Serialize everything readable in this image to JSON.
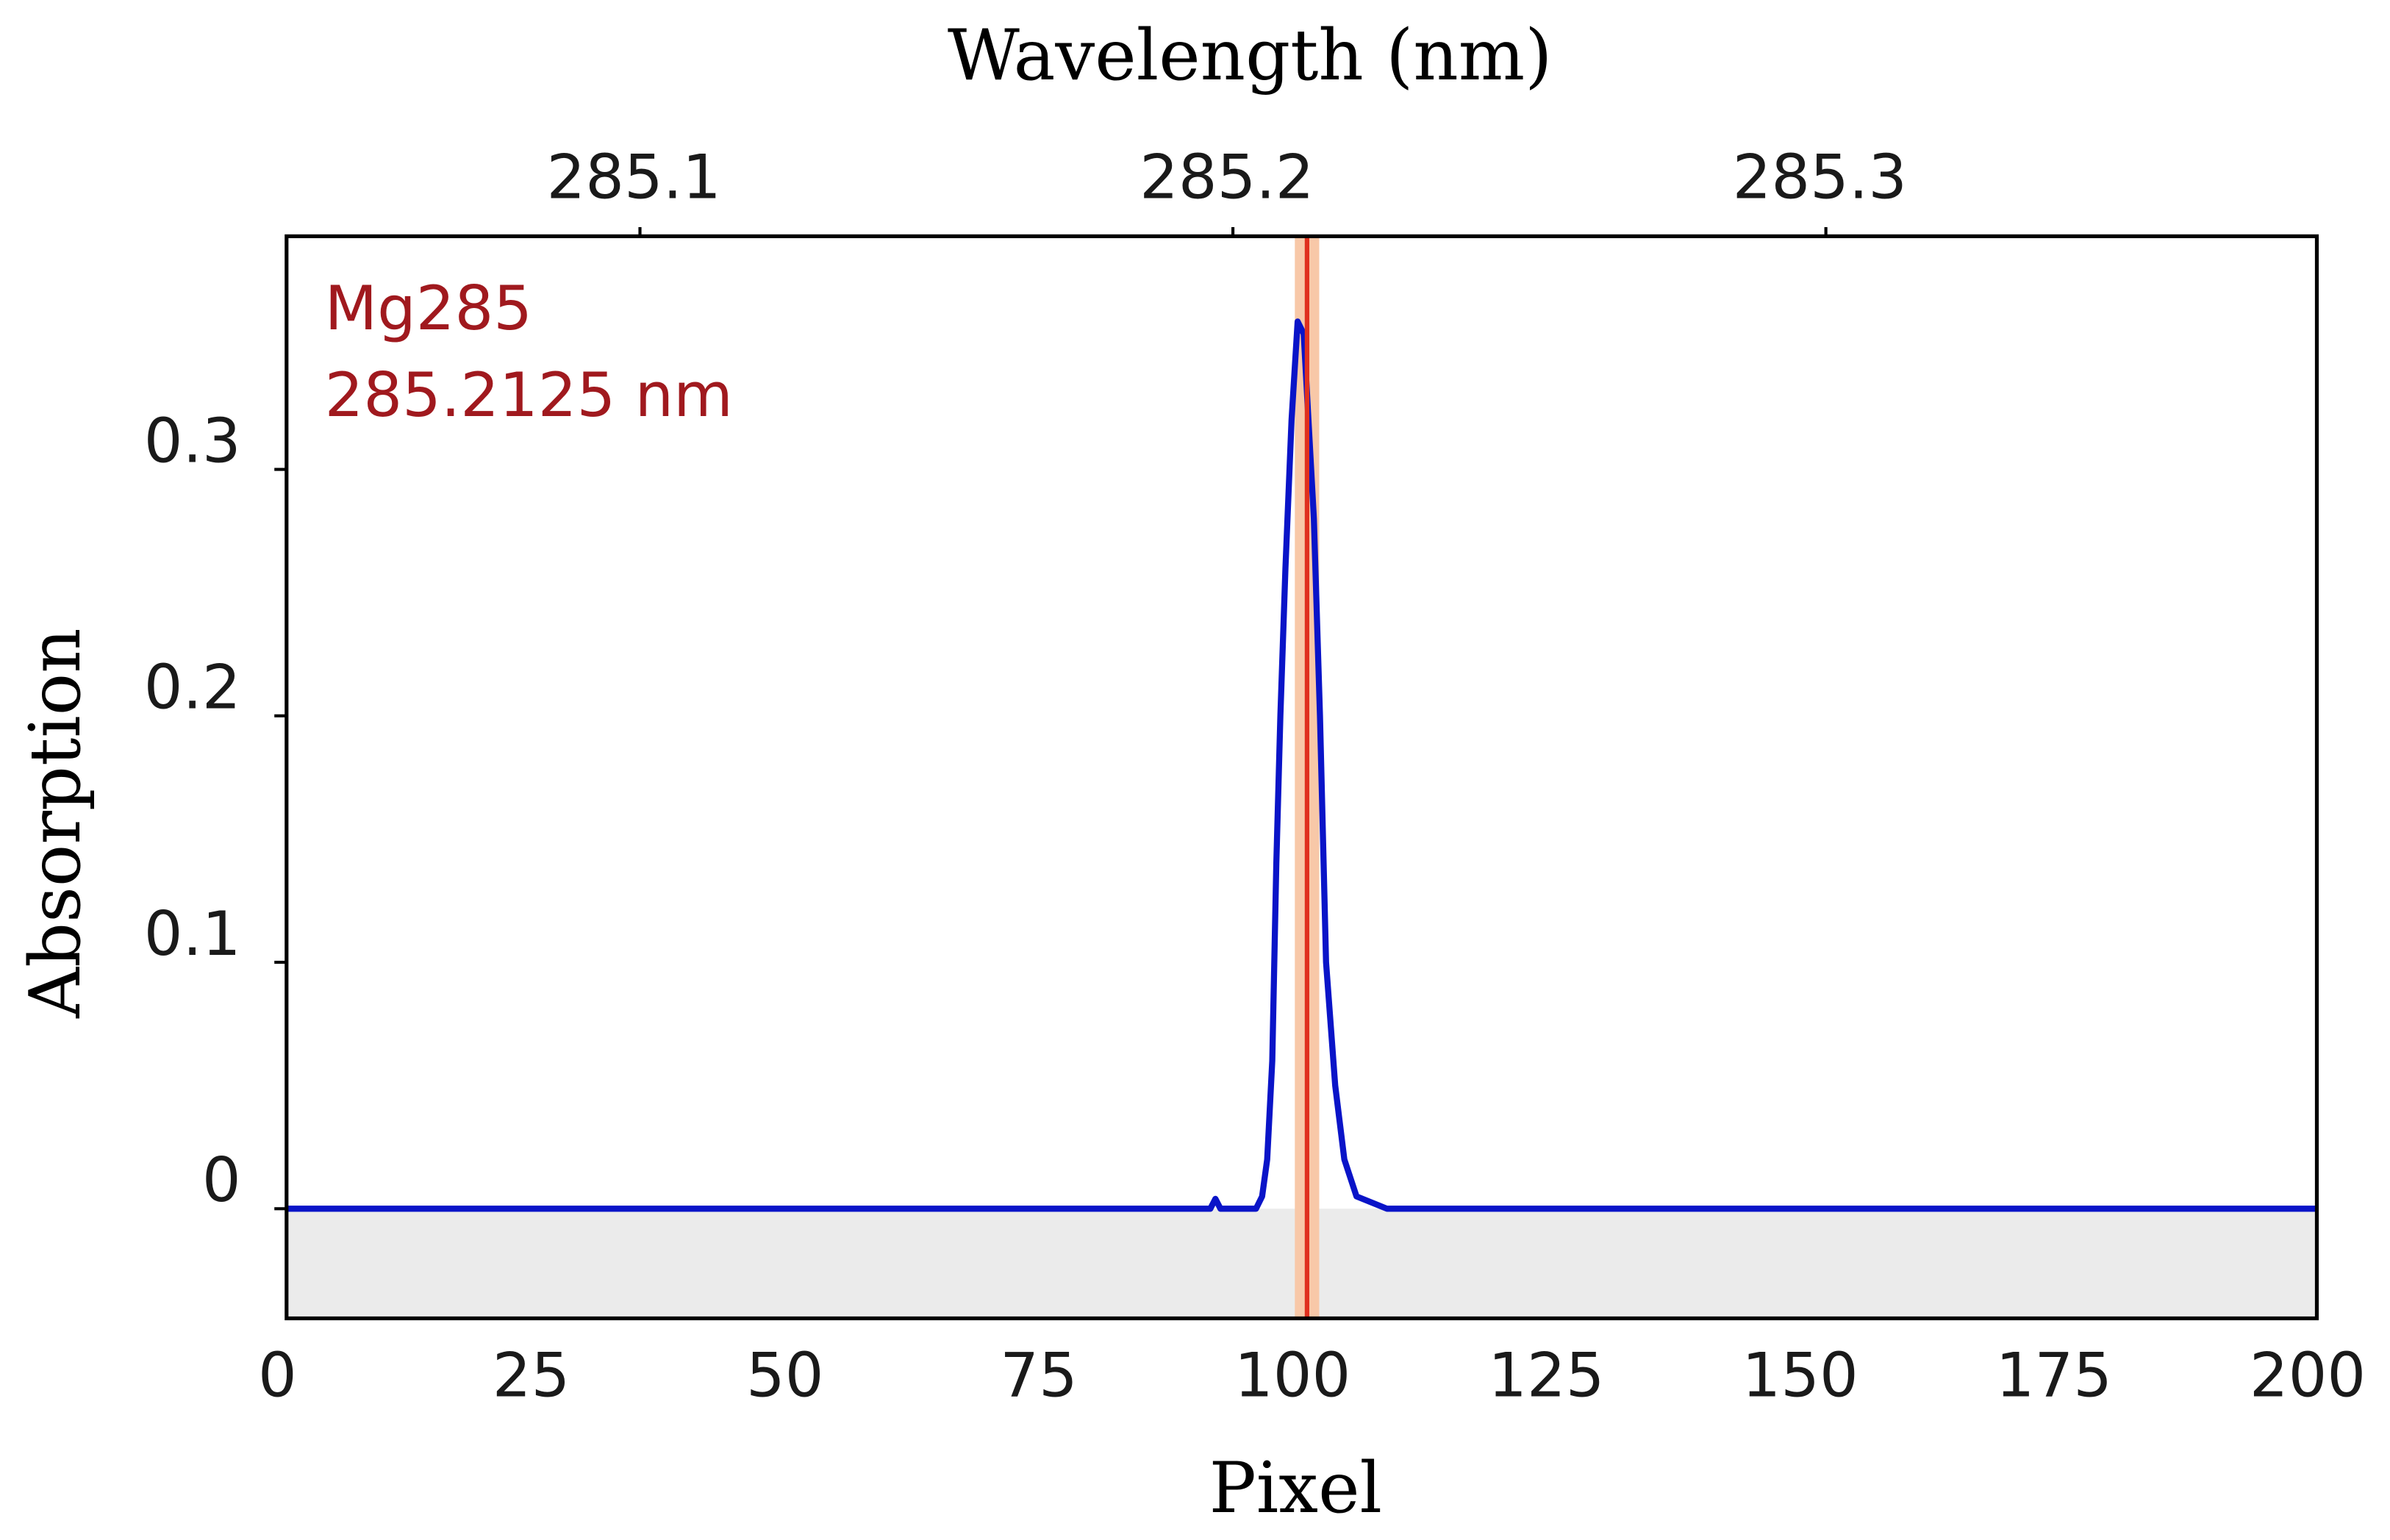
{
  "chart_data": {
    "type": "line",
    "x2label": "Wavelength (nm)",
    "xlabel": "Pixel",
    "ylabel": "Absorption",
    "x": [
      0,
      91,
      91.5,
      92,
      95.5,
      96.1,
      96.6,
      97.1,
      97.5,
      97.9,
      98.4,
      99,
      99.6,
      100.2,
      100.8,
      101.2,
      101.8,
      102.4,
      103.3,
      104.2,
      105.4,
      108.4,
      200
    ],
    "series": [
      {
        "color": "#0a14c8",
        "values": [
          0,
          0,
          0.004,
          0,
          0,
          0.005,
          0.02,
          0.06,
          0.14,
          0.2,
          0.26,
          0.32,
          0.36,
          0.355,
          0.31,
          0.28,
          0.2,
          0.1,
          0.05,
          0.02,
          0.005,
          0,
          0
        ]
      }
    ],
    "xlim": [
      0,
      200
    ],
    "xticks": [
      0,
      25,
      50,
      75,
      100,
      125,
      150,
      175,
      200
    ],
    "ylim": [
      -0.0445,
      0.3946
    ],
    "yticks": [
      0,
      0.1,
      0.2,
      0.3
    ],
    "x2lim": [
      285.0404,
      285.3828
    ],
    "x2ticks": [
      285.1,
      285.2,
      285.3
    ],
    "negative_fill": "#ebebeb",
    "marker_color": "#e0301e",
    "marker_band_color": "#f8c8a8",
    "annotations": [
      "Mg285",
      {
        "value": 285.2125,
        "label": "285.2125 nm"
      }
    ],
    "grid": false
  }
}
